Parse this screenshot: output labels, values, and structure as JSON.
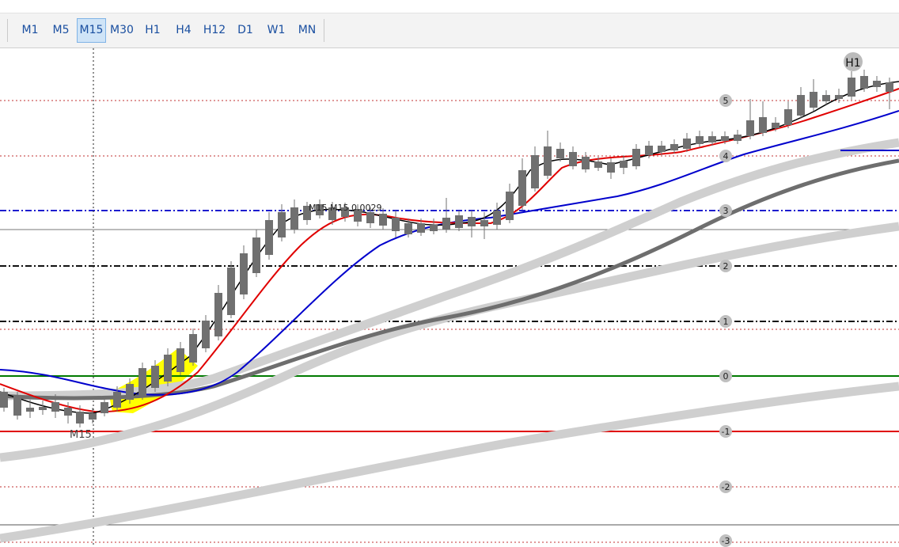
{
  "toolbar": {
    "timeframes": [
      "M1",
      "M5",
      "M15",
      "M30",
      "H1",
      "H4",
      "H12",
      "D1",
      "W1",
      "MN"
    ],
    "active": "M15"
  },
  "chart": {
    "level_labels": [
      "5",
      "4",
      "3",
      "2",
      "1",
      "0",
      "-1",
      "-2",
      "-3"
    ],
    "h1_badge": "H1",
    "m15_marker": "M15",
    "info_text": "M15  M15 0.0029",
    "colors": {
      "bull_candle": "#707070",
      "bear_candle": "#707070",
      "fast_ma": "#000000",
      "mid_ma": "#e00000",
      "slow_ma": "#0000cc",
      "ribbon_light": "#cfcfcf",
      "ribbon_dark": "#6e6e6e",
      "zero_line": "#007a00",
      "minus_one_line": "#e00000",
      "highlight": "#ffff00"
    }
  }
}
